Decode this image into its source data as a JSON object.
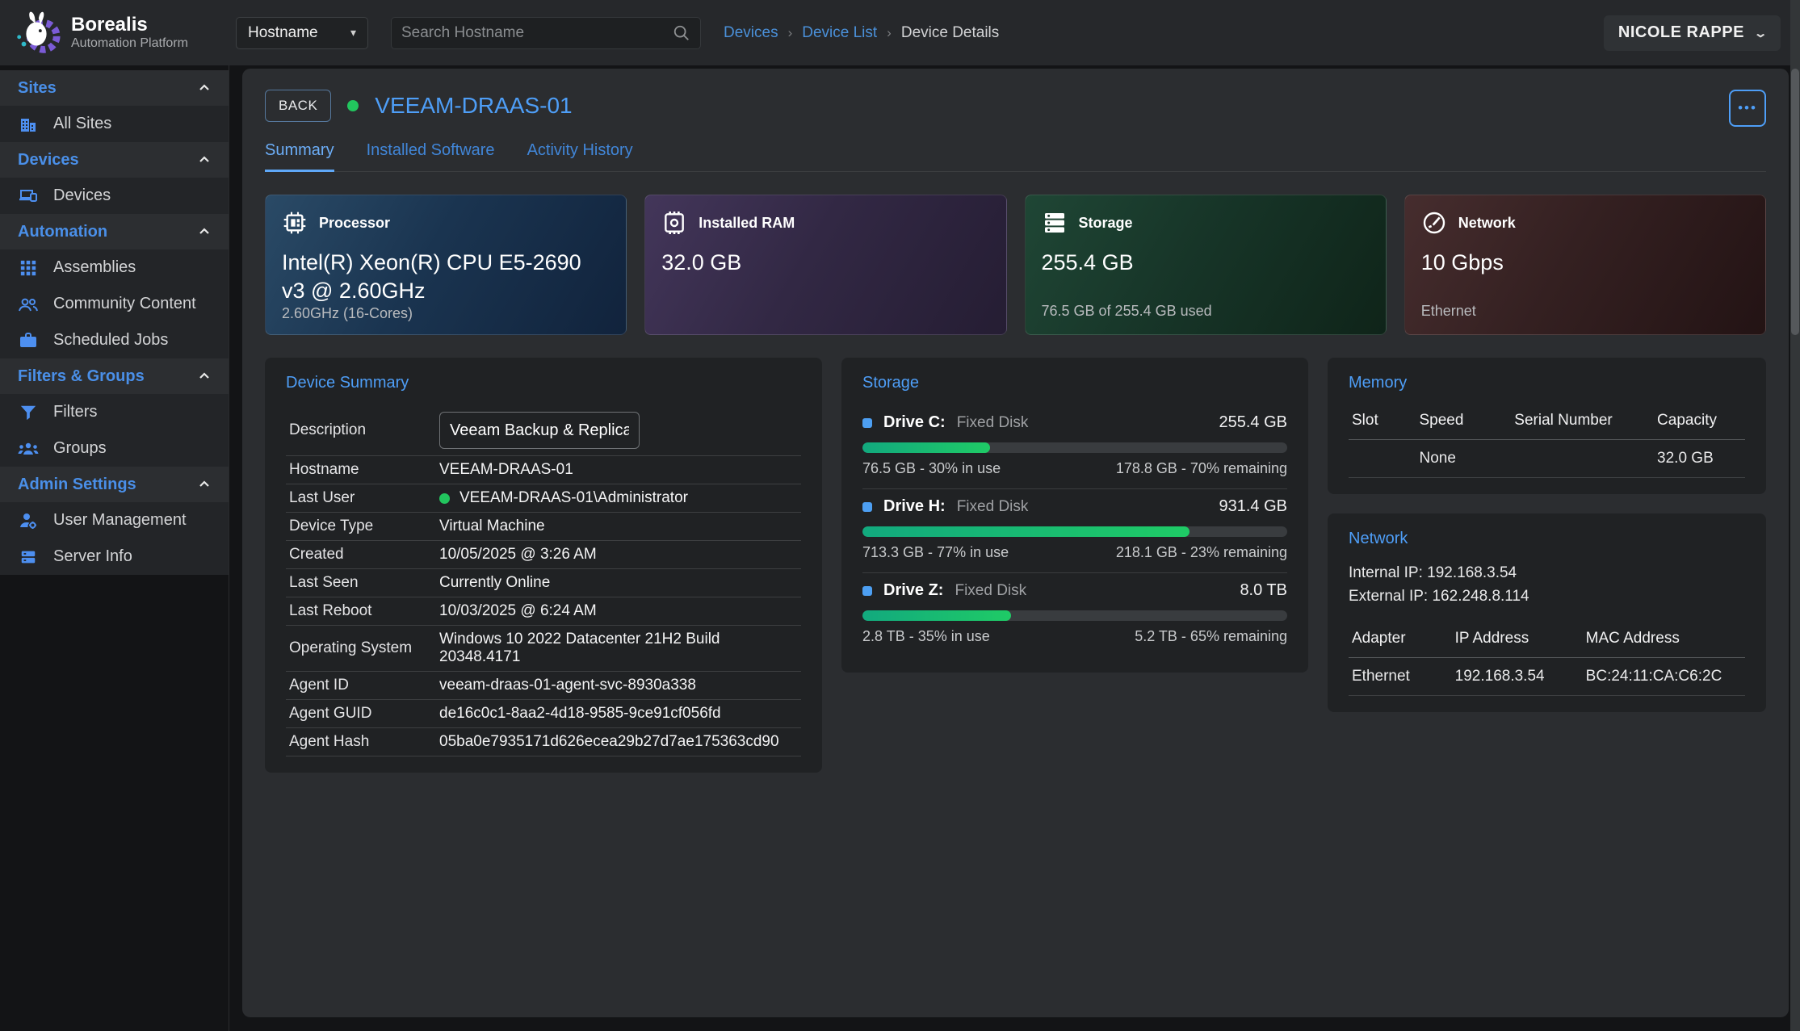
{
  "brand": {
    "name": "Borealis",
    "subtitle": "Automation Platform"
  },
  "topbar": {
    "filter_dropdown_value": "Hostname",
    "search_placeholder": "Search Hostname",
    "search_icon": "magnifier-icon",
    "breadcrumbs": [
      {
        "label": "Devices"
      },
      {
        "label": "Device List"
      },
      {
        "label": "Device Details"
      }
    ],
    "user_name": "NICOLE RAPPE"
  },
  "sidebar": {
    "sections": [
      {
        "header": "Sites",
        "items": [
          {
            "icon": "building-icon",
            "label": "All Sites"
          }
        ]
      },
      {
        "header": "Devices",
        "items": [
          {
            "icon": "devices-icon",
            "label": "Devices"
          }
        ]
      },
      {
        "header": "Automation",
        "items": [
          {
            "icon": "grid-icon",
            "label": "Assemblies"
          },
          {
            "icon": "people-icon",
            "label": "Community Content"
          },
          {
            "icon": "briefcase-icon",
            "label": "Scheduled Jobs"
          }
        ]
      },
      {
        "header": "Filters & Groups",
        "items": [
          {
            "icon": "funnel-icon",
            "label": "Filters"
          },
          {
            "icon": "groups-icon",
            "label": "Groups"
          }
        ]
      },
      {
        "header": "Admin Settings",
        "items": [
          {
            "icon": "user-gear-icon",
            "label": "User Management"
          },
          {
            "icon": "server-icon",
            "label": "Server Info"
          }
        ]
      }
    ]
  },
  "device": {
    "back_label": "BACK",
    "name": "VEEAM-DRAAS-01",
    "online_color": "#22c55e",
    "accent_color": "#4e9ef7",
    "more_label": "•••",
    "tabs": [
      {
        "label": "Summary"
      },
      {
        "label": "Installed Software"
      },
      {
        "label": "Activity History"
      }
    ],
    "active_tab": "Summary"
  },
  "stat_cards": [
    {
      "icon": "cpu-icon",
      "label": "Processor",
      "value": "Intel(R) Xeon(R) CPU E5-2690 v3 @ 2.60GHz",
      "footer": "2.60GHz (16-Cores)"
    },
    {
      "icon": "ram-icon",
      "label": "Installed RAM",
      "value": "32.0 GB",
      "footer": ""
    },
    {
      "icon": "storage-icon",
      "label": "Storage",
      "value": "255.4 GB",
      "footer": "76.5 GB of 255.4 GB used"
    },
    {
      "icon": "gauge-icon",
      "label": "Network",
      "value": "10 Gbps",
      "footer": "Ethernet"
    }
  ],
  "device_summary": {
    "title": "Device Summary",
    "description_label": "Description",
    "description_value": "Veeam Backup & Replication",
    "rows": [
      {
        "label": "Hostname",
        "value": "VEEAM-DRAAS-01"
      },
      {
        "label": "Last User",
        "value": "VEEAM-DRAAS-01\\Administrator",
        "online": true
      },
      {
        "label": "Device Type",
        "value": "Virtual Machine"
      },
      {
        "label": "Created",
        "value": "10/05/2025 @ 3:26 AM"
      },
      {
        "label": "Last Seen",
        "value": "Currently Online"
      },
      {
        "label": "Last Reboot",
        "value": "10/03/2025 @ 6:24 AM"
      },
      {
        "label": "Operating System",
        "value": "Windows 10 2022 Datacenter 21H2 Build 20348.4171"
      },
      {
        "label": "Agent ID",
        "value": "veeam-draas-01-agent-svc-8930a338"
      },
      {
        "label": "Agent GUID",
        "value": "de16c0c1-8aa2-4d18-9585-9ce91cf056fd"
      },
      {
        "label": "Agent Hash",
        "value": "05ba0e7935171d626ecea29b27d7ae175363cd90"
      }
    ]
  },
  "storage_panel": {
    "title": "Storage",
    "bar_color": "#1fcb66",
    "drives": [
      {
        "name": "Drive C:",
        "type": "Fixed Disk",
        "size": "255.4 GB",
        "used_pct": 30,
        "used_text": "76.5 GB - 30% in use",
        "remaining_text": "178.8 GB - 70% remaining"
      },
      {
        "name": "Drive H:",
        "type": "Fixed Disk",
        "size": "931.4 GB",
        "used_pct": 77,
        "used_text": "713.3 GB - 77% in use",
        "remaining_text": "218.1 GB - 23% remaining"
      },
      {
        "name": "Drive Z:",
        "type": "Fixed Disk",
        "size": "8.0 TB",
        "used_pct": 35,
        "used_text": "2.8 TB - 35% in use",
        "remaining_text": "5.2 TB - 65% remaining"
      }
    ]
  },
  "memory_panel": {
    "title": "Memory",
    "headers": {
      "slot": "Slot",
      "speed": "Speed",
      "serial": "Serial Number",
      "capacity": "Capacity"
    },
    "row": {
      "slot": "",
      "speed": "None",
      "serial": "",
      "capacity": "32.0 GB"
    }
  },
  "network_panel": {
    "title": "Network",
    "internal_ip": "Internal IP: 192.168.3.54",
    "external_ip": "External IP: 162.248.8.114",
    "headers": {
      "adapter": "Adapter",
      "ip": "IP Address",
      "mac": "MAC Address"
    },
    "row": {
      "adapter": "Ethernet",
      "ip": "192.168.3.54",
      "mac": "BC:24:11:CA:C6:2C"
    }
  }
}
